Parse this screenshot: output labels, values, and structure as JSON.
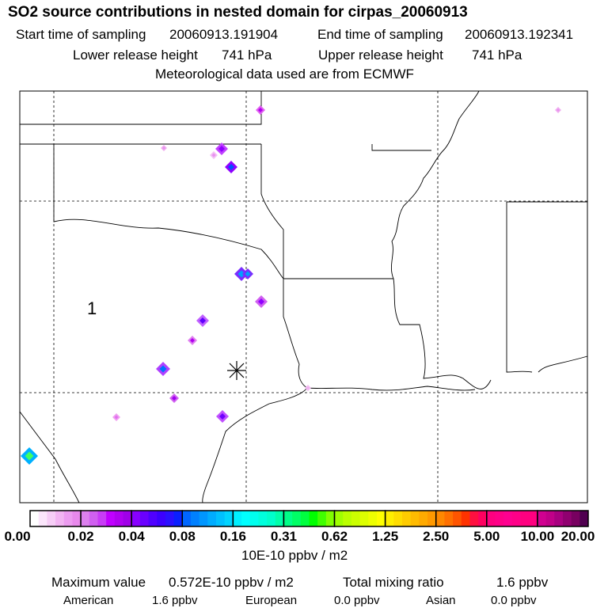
{
  "header": {
    "title": "SO2 source contributions in nested domain for cirpas_20060913",
    "start_label": "Start time of sampling",
    "start_value": "20060913.191904",
    "end_label": "End time of sampling",
    "end_value": "20060913.192341",
    "lower_label": "Lower release height",
    "lower_value": "741 hPa",
    "upper_label": "Upper release height",
    "upper_value": "741 hPa",
    "met_line": "Meteorological data used are from ECMWF"
  },
  "map": {
    "region_label": "1",
    "release_marker": "asterisk-icon"
  },
  "colorbar": {
    "labels": [
      "0.00",
      "0.02",
      "0.04",
      "0.08",
      "0.16",
      "0.31",
      "0.62",
      "1.25",
      "2.50",
      "5.00",
      "10.00",
      "20.00"
    ],
    "units": "10E-10 ppbv / m2",
    "interval_colors": [
      [
        "#ffffff",
        "#fbe6fb",
        "#f6cdf6",
        "#f2b4f2",
        "#ec9cf0",
        "#e889ec"
      ],
      [
        "#dc80ee",
        "#d060f0",
        "#c83cf6",
        "#c000ff",
        "#b000f0",
        "#a000e8"
      ],
      [
        "#8800ff",
        "#6a00ff",
        "#5000ff",
        "#3c00ff",
        "#2a10ff",
        "#0a20ff"
      ],
      [
        "#0066ff",
        "#0080ff",
        "#0096ff",
        "#00acff",
        "#00c0ff",
        "#00d4ff"
      ],
      [
        "#00f0ff",
        "#00ffff",
        "#00ffee",
        "#00ffdd",
        "#00ffcc",
        "#00ffaa"
      ],
      [
        "#00ff88",
        "#00ff66",
        "#00ff40",
        "#00ff00",
        "#40ff00",
        "#80ff00"
      ],
      [
        "#a0ff00",
        "#bbff00",
        "#ccff00",
        "#ddff00",
        "#eeff00",
        "#ffff00"
      ],
      [
        "#ffee00",
        "#ffdd00",
        "#ffcc00",
        "#ffbb00",
        "#ffaa00",
        "#ff9900"
      ],
      [
        "#ff8800",
        "#ff7000",
        "#ff5500",
        "#ff3300",
        "#ff1040",
        "#ff0060"
      ],
      [
        "#ff0080",
        "#ff0088",
        "#ff0090",
        "#ff0088",
        "#ff0080",
        "#ff0080"
      ],
      [
        "#d00090",
        "#c00088",
        "#a80080",
        "#900070",
        "#780060",
        "#500050"
      ]
    ]
  },
  "summary": {
    "max_label": "Maximum value",
    "max_value": "0.572E-10 ppbv / m2",
    "total_label": "Total mixing ratio",
    "total_value": "1.6 ppbv",
    "american_label": "American",
    "american_value": "1.6 ppbv",
    "european_label": "European",
    "european_value": "0.0 ppbv",
    "asian_label": "Asian",
    "asian_value": "0.0 ppbv"
  }
}
